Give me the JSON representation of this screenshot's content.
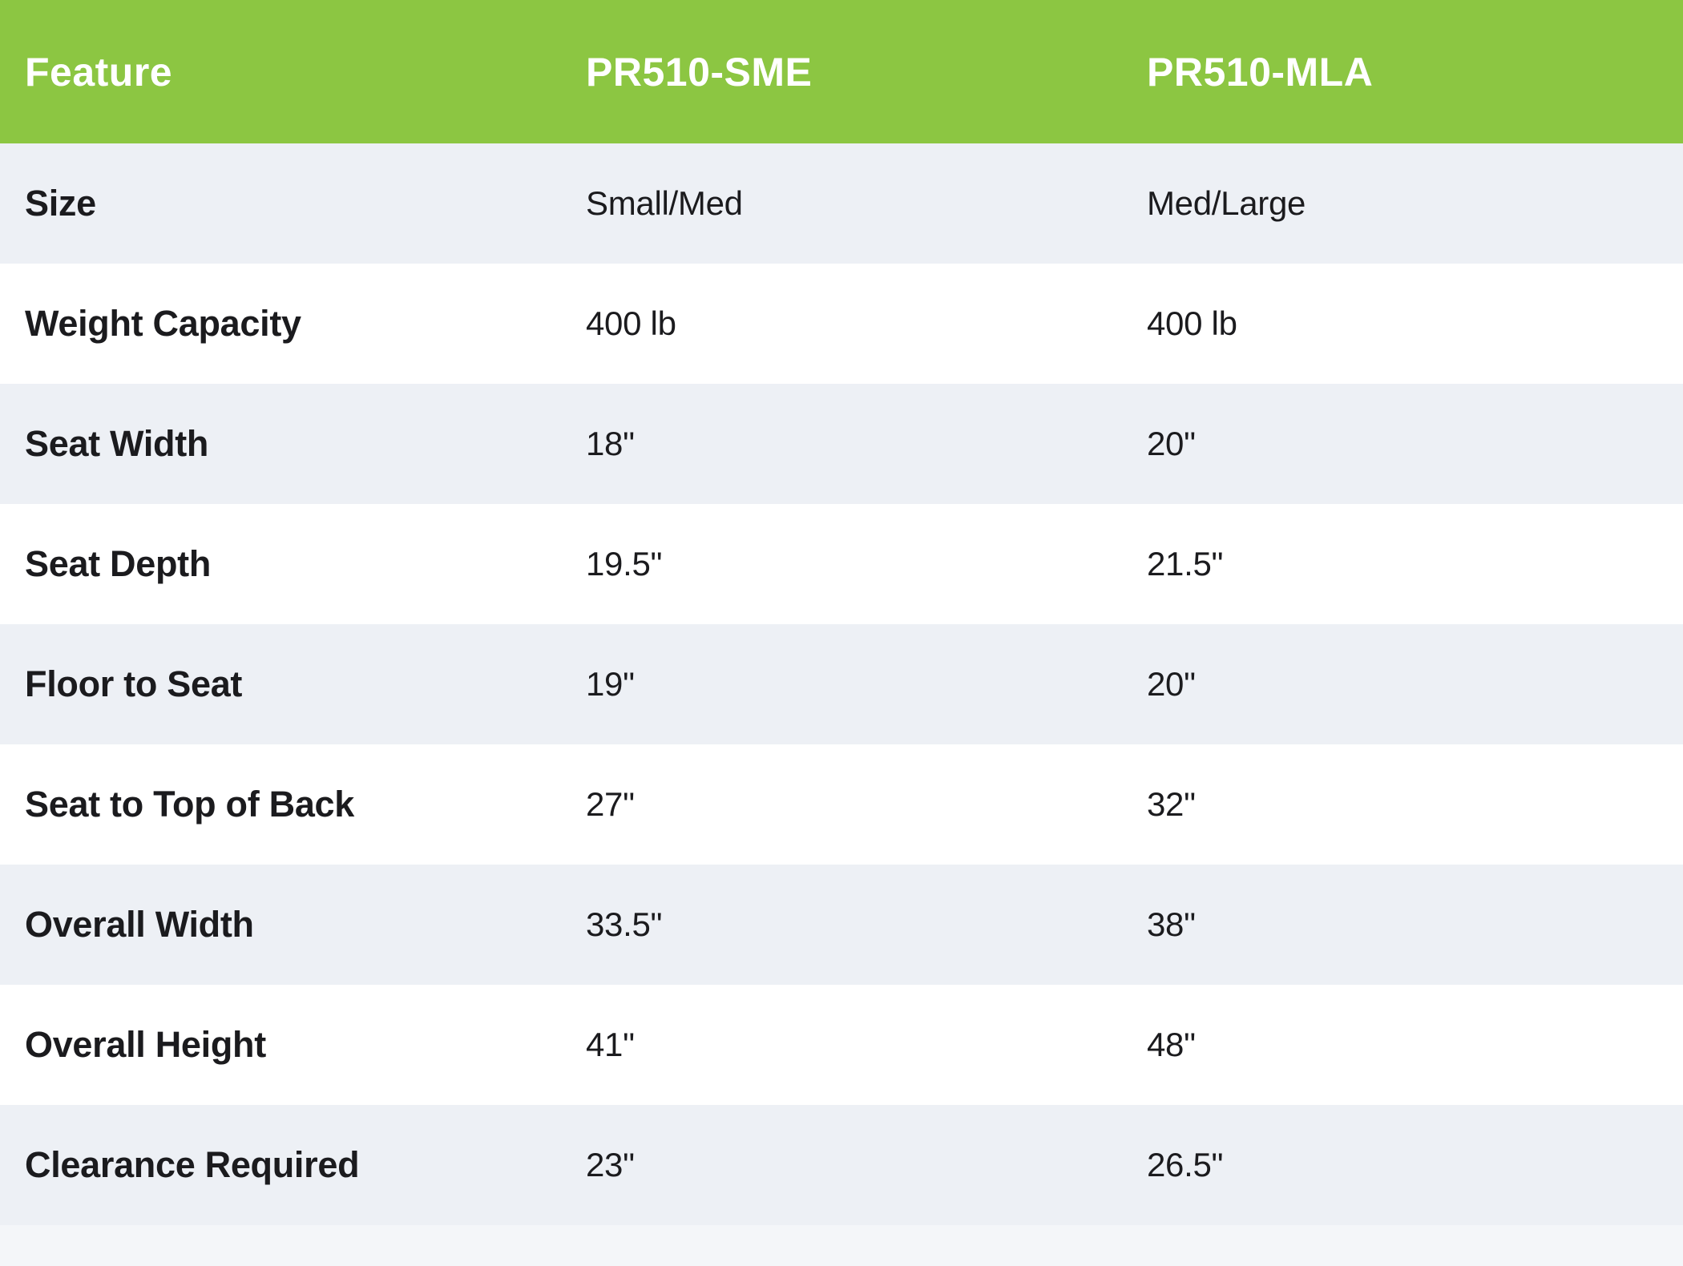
{
  "table": {
    "columns": [
      "Feature",
      "PR510-SME",
      "PR510-MLA"
    ],
    "rows": [
      {
        "feature": "Size",
        "sme": "Small/Med",
        "mla": "Med/Large"
      },
      {
        "feature": "Weight Capacity",
        "sme": "400 lb",
        "mla": "400 lb"
      },
      {
        "feature": "Seat Width",
        "sme": "18\"",
        "mla": "20\""
      },
      {
        "feature": "Seat Depth",
        "sme": "19.5\"",
        "mla": "21.5\""
      },
      {
        "feature": "Floor to Seat",
        "sme": "19\"",
        "mla": "20\""
      },
      {
        "feature": "Seat to Top of Back",
        "sme": "27\"",
        "mla": "32\""
      },
      {
        "feature": "Overall Width",
        "sme": "33.5\"",
        "mla": "38\""
      },
      {
        "feature": "Overall Height",
        "sme": "41\"",
        "mla": "48\""
      },
      {
        "feature": "Clearance Required",
        "sme": "23\"",
        "mla": "26.5\""
      }
    ],
    "colors": {
      "header_bg": "#8CC642",
      "header_text": "#FFFFFF",
      "row_bg": "#FFFFFF",
      "row_alt_bg": "#EDF0F5",
      "bottom_strip_bg": "#F4F6F9",
      "text": "#1B1B1E"
    }
  }
}
